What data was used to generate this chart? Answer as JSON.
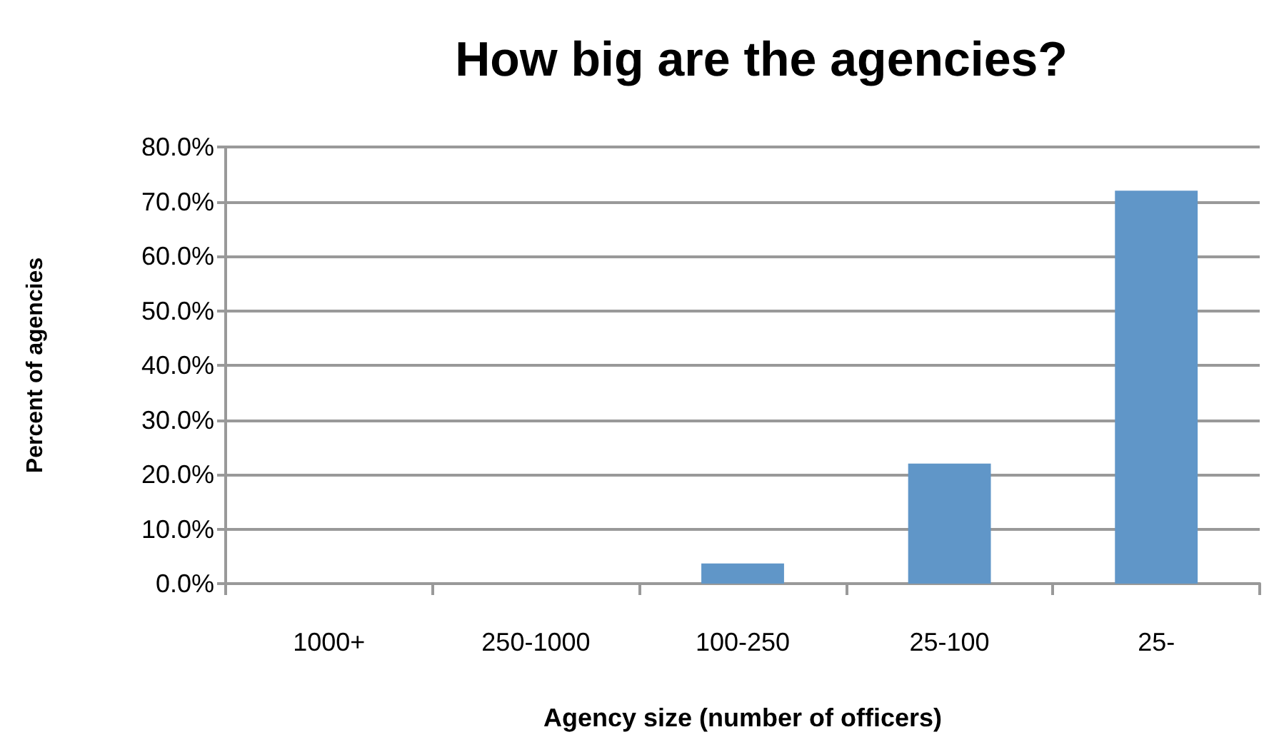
{
  "chart_data": {
    "type": "bar",
    "title": "How big are the agencies?",
    "xlabel": "Agency size (number of officers)",
    "ylabel": "Percent of agencies",
    "categories": [
      "1000+",
      "250-1000",
      "100-250",
      "25-100",
      "25-"
    ],
    "values": [
      0,
      0,
      3.7,
      22,
      72
    ],
    "color": "#6096c8",
    "ylim": [
      0,
      80
    ],
    "yticks": [
      {
        "value": 0,
        "label": "0.0%"
      },
      {
        "value": 10,
        "label": "10.0%"
      },
      {
        "value": 20,
        "label": "20.0%"
      },
      {
        "value": 30,
        "label": "30.0%"
      },
      {
        "value": 40,
        "label": "40.0%"
      },
      {
        "value": 50,
        "label": "50.0%"
      },
      {
        "value": 60,
        "label": "60.0%"
      },
      {
        "value": 70,
        "label": "70.0%"
      },
      {
        "value": 80,
        "label": "80.0%"
      }
    ],
    "grid": "y"
  }
}
